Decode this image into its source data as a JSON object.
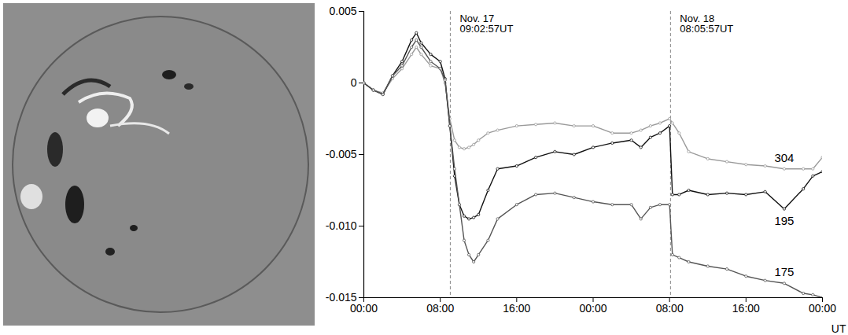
{
  "chart_data": {
    "type": "line",
    "x_label": "UT",
    "x": [
      0,
      1,
      2,
      3,
      4,
      5,
      5.5,
      6,
      7,
      8,
      8.5,
      9,
      9.5,
      10,
      10.5,
      11,
      11.5,
      12,
      13,
      14,
      16,
      18,
      20,
      22,
      24,
      26,
      28,
      29,
      30,
      31,
      32,
      32.3,
      33,
      34,
      36,
      38,
      40,
      42,
      44,
      46,
      47,
      48
    ],
    "xlim": [
      0,
      48
    ],
    "xticks": [
      {
        "value": 0,
        "label": "00:00"
      },
      {
        "value": 8,
        "label": "08:00"
      },
      {
        "value": 16,
        "label": "16:00"
      },
      {
        "value": 24,
        "label": "00:00"
      },
      {
        "value": 32,
        "label": "08:00"
      },
      {
        "value": 40,
        "label": "16:00"
      },
      {
        "value": 48,
        "label": "00:00"
      }
    ],
    "ylim": [
      -0.015,
      0.005
    ],
    "yticks": [
      0.005,
      0,
      -0.005,
      {
        "value": -0.01,
        "label": "-0.010"
      },
      -0.015
    ],
    "series": [
      {
        "name": "304",
        "color": "#9a9a9a",
        "marker": "circle",
        "line_style": "solid",
        "values": [
          0,
          -0.0005,
          -0.0007,
          0.0003,
          0.001,
          0.002,
          0.0025,
          0.002,
          0.0012,
          0.001,
          0,
          -0.0025,
          -0.004,
          -0.0045,
          -0.0046,
          -0.0045,
          -0.0043,
          -0.004,
          -0.0035,
          -0.0033,
          -0.003,
          -0.0029,
          -0.0028,
          -0.003,
          -0.003,
          -0.0035,
          -0.0035,
          -0.0033,
          -0.003,
          -0.0028,
          -0.0025,
          -0.0028,
          -0.0035,
          -0.0048,
          -0.0053,
          -0.0055,
          -0.0057,
          -0.0058,
          -0.006,
          -0.006,
          -0.006,
          -0.0052
        ]
      },
      {
        "name": "195",
        "color": "#111111",
        "marker": "circle",
        "line_style": "solid",
        "values": [
          0,
          -0.0005,
          -0.0008,
          0.0005,
          0.0015,
          0.003,
          0.0035,
          0.0028,
          0.002,
          0.0015,
          0.0003,
          -0.003,
          -0.0065,
          -0.0085,
          -0.0093,
          -0.0095,
          -0.0094,
          -0.0092,
          -0.0075,
          -0.006,
          -0.0058,
          -0.0052,
          -0.0048,
          -0.005,
          -0.0045,
          -0.0042,
          -0.004,
          -0.0045,
          -0.0038,
          -0.0035,
          -0.003,
          -0.0078,
          -0.0078,
          -0.0075,
          -0.0078,
          -0.0077,
          -0.0078,
          -0.0076,
          -0.0088,
          -0.0074,
          -0.0065,
          -0.0062
        ]
      },
      {
        "name": "175",
        "color": "#555555",
        "marker": "circle",
        "line_style": "solid",
        "values": [
          0,
          -0.0005,
          -0.0008,
          0.0005,
          0.0012,
          0.0025,
          0.003,
          0.0025,
          0.0015,
          0.001,
          0.0002,
          -0.003,
          -0.006,
          -0.0085,
          -0.011,
          -0.012,
          -0.0125,
          -0.012,
          -0.011,
          -0.0095,
          -0.0085,
          -0.0078,
          -0.0077,
          -0.008,
          -0.0083,
          -0.0085,
          -0.0085,
          -0.0095,
          -0.0087,
          -0.0085,
          -0.0085,
          -0.012,
          -0.0122,
          -0.0125,
          -0.0128,
          -0.013,
          -0.0135,
          -0.0138,
          -0.014,
          -0.0147,
          -0.0148,
          -0.015
        ]
      }
    ],
    "annotations": [
      {
        "x": 9.0492,
        "text": "Nov. 17\n09:02:57UT",
        "line_style": "dashed"
      },
      {
        "x": 32.0992,
        "text": "Nov. 18\n08:05:57UT",
        "line_style": "dashed"
      }
    ]
  }
}
